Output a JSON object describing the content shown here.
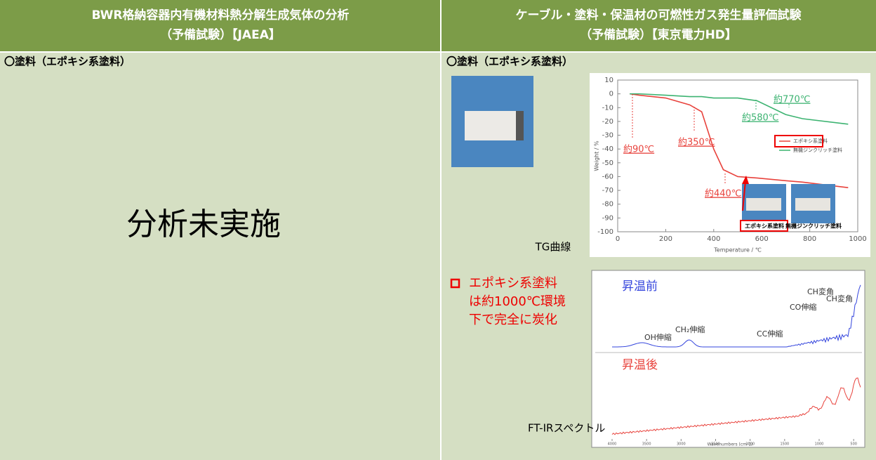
{
  "header": {
    "left_title": [
      "BWR格納容器内有機材料熱分解生成気体の分析",
      "（予備試験）【JAEA】"
    ],
    "right_title": [
      "ケーブル・塗料・保温材の可燃性ガス発生量評価試験",
      "（予備試験）【東京電力HD】"
    ]
  },
  "left": {
    "section_label": "〇塗料（エポキシ系塗料）",
    "note": "分析未実施"
  },
  "right": {
    "section_label": "〇塗料（エポキシ系塗料）",
    "tg_chart": {
      "type": "line",
      "xlim": [
        0,
        1000
      ],
      "ylim": [
        -100,
        10
      ],
      "xticks": [
        0,
        200,
        400,
        600,
        800,
        1000
      ],
      "yticks": [
        10,
        0,
        -10,
        -20,
        -30,
        -40,
        -50,
        -60,
        -70,
        -80,
        -90,
        -100
      ],
      "xlabel": "Temperature / ℃",
      "ylabel": "Weight / %",
      "x": [
        50,
        90,
        200,
        300,
        350,
        400,
        440,
        500,
        580,
        700,
        770,
        960
      ],
      "series": [
        {
          "name": "エポキシ系塗料",
          "color": "#e8423c",
          "values": [
            0,
            -1,
            -3,
            -8,
            -13,
            -40,
            -55,
            -60,
            -61,
            -63,
            -64,
            -68
          ]
        },
        {
          "name": "無機ジンクリッチ塗料",
          "color": "#3cb371",
          "values": [
            0,
            0,
            -1,
            -2,
            -2,
            -3,
            -3,
            -3,
            -5,
            -15,
            -18,
            -22
          ]
        }
      ],
      "annotations": [
        "約90℃",
        "約350℃",
        "約440℃",
        "約580℃",
        "約770℃"
      ],
      "inset_labels": [
        "エポキシ系塗料",
        "無機ジンクリッチ塗料"
      ],
      "caption": "TG曲線"
    },
    "conclusion": [
      "エポキシ系塗料",
      "は約1000℃環境",
      "下で完全に炭化"
    ],
    "ftir": {
      "xlim": [
        4000,
        400
      ],
      "xticks": [
        4000,
        3500,
        3000,
        2500,
        2000,
        1500,
        1000,
        500
      ],
      "xlabel": "Wavenumbers (cm-1)",
      "before_label": "昇温前",
      "after_label": "昇温後",
      "peak_labels": [
        "OH伸縮",
        "CH₂伸縮",
        "CC伸縮",
        "CO伸縮",
        "CH変角",
        "CH変角"
      ],
      "caption": "FT-IRスペクトル"
    }
  }
}
